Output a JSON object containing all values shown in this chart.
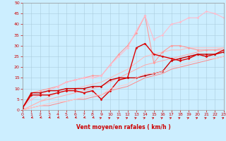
{
  "background_color": "#cceeff",
  "grid_color": "#aaccdd",
  "x_label": "Vent moyen/en rafales ( km/h )",
  "xlim": [
    0,
    23
  ],
  "ylim": [
    0,
    50
  ],
  "xticks": [
    0,
    1,
    2,
    3,
    4,
    5,
    6,
    7,
    8,
    9,
    10,
    11,
    12,
    13,
    14,
    15,
    16,
    17,
    18,
    19,
    20,
    21,
    22,
    23
  ],
  "yticks": [
    0,
    5,
    10,
    15,
    20,
    25,
    30,
    35,
    40,
    45,
    50
  ],
  "lines": [
    {
      "x": [
        0,
        1,
        2,
        3,
        4,
        5,
        6,
        7,
        8,
        9,
        10,
        11,
        12,
        13,
        14,
        15,
        16,
        17,
        18,
        19,
        20,
        21,
        22,
        23
      ],
      "y": [
        0,
        2,
        4,
        5,
        6,
        7,
        8,
        9,
        10,
        11,
        13,
        15,
        17,
        19,
        21,
        22,
        23,
        24,
        25,
        26,
        27,
        28,
        28,
        29
      ],
      "color": "#ffaaaa",
      "lw": 0.7,
      "marker": null
    },
    {
      "x": [
        0,
        1,
        2,
        3,
        4,
        5,
        6,
        7,
        8,
        9,
        10,
        11,
        12,
        13,
        14,
        15,
        16,
        17,
        18,
        19,
        20,
        21,
        22,
        23
      ],
      "y": [
        0,
        2,
        4,
        6,
        8,
        9,
        10,
        11,
        12,
        13,
        15,
        17,
        19,
        22,
        25,
        26,
        27,
        28,
        28,
        29,
        29,
        29,
        29,
        29
      ],
      "color": "#ffbbbb",
      "lw": 0.7,
      "marker": null
    },
    {
      "x": [
        0,
        1,
        2,
        3,
        4,
        5,
        6,
        7,
        8,
        9,
        10,
        11,
        12,
        13,
        14,
        15,
        16,
        17,
        18,
        19,
        20,
        21,
        22,
        23
      ],
      "y": [
        1,
        8,
        9,
        10,
        11,
        13,
        14,
        15,
        16,
        16,
        21,
        26,
        30,
        36,
        44,
        22,
        27,
        30,
        30,
        29,
        28,
        28,
        28,
        28
      ],
      "color": "#ff9999",
      "lw": 0.8,
      "marker": "D",
      "ms": 1.5
    },
    {
      "x": [
        0,
        1,
        2,
        3,
        4,
        5,
        6,
        7,
        8,
        9,
        10,
        11,
        12,
        13,
        14,
        15,
        16,
        17,
        18,
        19,
        20,
        21,
        22,
        23
      ],
      "y": [
        1,
        5,
        7,
        9,
        11,
        13,
        14,
        15,
        15,
        16,
        21,
        25,
        29,
        37,
        44,
        33,
        35,
        40,
        41,
        43,
        43,
        46,
        45,
        43
      ],
      "color": "#ffbbcc",
      "lw": 0.8,
      "marker": "D",
      "ms": 1.5
    },
    {
      "x": [
        0,
        1,
        2,
        3,
        4,
        5,
        6,
        7,
        8,
        9,
        10,
        11,
        12,
        13,
        14,
        15,
        16,
        17,
        18,
        19,
        20,
        21,
        22,
        23
      ],
      "y": [
        1,
        7,
        7,
        7,
        8,
        9,
        9,
        8,
        9,
        5,
        9,
        14,
        15,
        29,
        31,
        26,
        25,
        24,
        23,
        24,
        26,
        25,
        26,
        28
      ],
      "color": "#dd0000",
      "lw": 1.0,
      "marker": "D",
      "ms": 1.5
    },
    {
      "x": [
        0,
        1,
        2,
        3,
        4,
        5,
        6,
        7,
        8,
        9,
        10,
        11,
        12,
        13,
        14,
        15,
        16,
        17,
        18,
        19,
        20,
        21,
        22,
        23
      ],
      "y": [
        1,
        8,
        8,
        9,
        9,
        10,
        10,
        10,
        11,
        11,
        14,
        15,
        15,
        15,
        16,
        17,
        18,
        23,
        24,
        25,
        26,
        26,
        26,
        27
      ],
      "color": "#cc0000",
      "lw": 1.0,
      "marker": "D",
      "ms": 1.5
    },
    {
      "x": [
        0,
        1,
        2,
        3,
        4,
        5,
        6,
        7,
        8,
        9,
        10,
        11,
        12,
        13,
        14,
        15,
        16,
        17,
        18,
        19,
        20,
        21,
        22,
        23
      ],
      "y": [
        0,
        1,
        2,
        2,
        3,
        4,
        5,
        5,
        6,
        7,
        9,
        10,
        11,
        13,
        15,
        16,
        17,
        19,
        20,
        21,
        22,
        23,
        24,
        25
      ],
      "color": "#ff8888",
      "lw": 0.7,
      "marker": null
    },
    {
      "x": [
        0,
        1,
        2,
        3,
        4,
        5,
        6,
        7,
        8,
        9,
        10,
        11,
        12,
        13,
        14,
        15,
        16,
        17,
        18,
        19,
        20,
        21,
        22,
        23
      ],
      "y": [
        0,
        1,
        2,
        3,
        4,
        4,
        5,
        6,
        7,
        7,
        10,
        11,
        12,
        15,
        17,
        17,
        18,
        20,
        21,
        22,
        23,
        24,
        24,
        25
      ],
      "color": "#ffcccc",
      "lw": 0.7,
      "marker": null
    }
  ],
  "wind_arrows": [
    {
      "x": 0,
      "left": true
    },
    {
      "x": 1,
      "left": true
    },
    {
      "x": 2,
      "left": true
    },
    {
      "x": 3,
      "left": true
    },
    {
      "x": 4,
      "left": true
    },
    {
      "x": 5,
      "left": true
    },
    {
      "x": 6,
      "left": true
    },
    {
      "x": 7,
      "left": true
    },
    {
      "x": 8,
      "left": true
    },
    {
      "x": 9,
      "left": false
    },
    {
      "x": 10,
      "left": false
    },
    {
      "x": 11,
      "left": false
    },
    {
      "x": 12,
      "left": false
    },
    {
      "x": 13,
      "left": false
    },
    {
      "x": 14,
      "left": false
    },
    {
      "x": 15,
      "left": false
    },
    {
      "x": 16,
      "left": false
    },
    {
      "x": 17,
      "left": false
    },
    {
      "x": 18,
      "left": false
    },
    {
      "x": 19,
      "left": false
    },
    {
      "x": 20,
      "left": false
    },
    {
      "x": 21,
      "left": false
    },
    {
      "x": 22,
      "left": false
    },
    {
      "x": 23,
      "left": false
    }
  ]
}
